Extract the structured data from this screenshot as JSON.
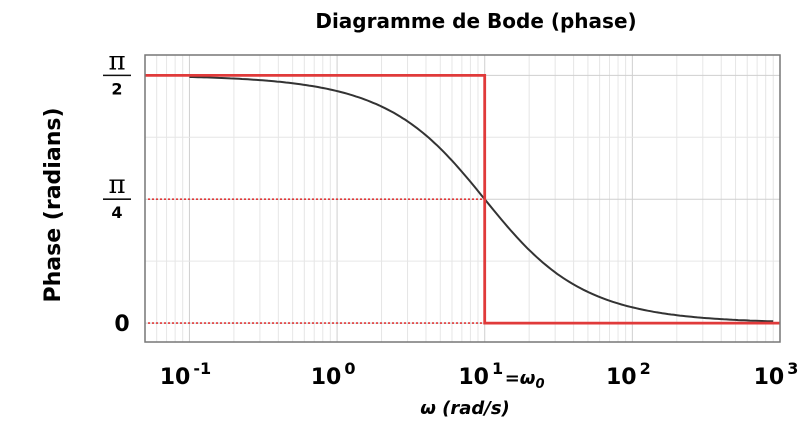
{
  "chart_data": {
    "type": "line",
    "title": "Diagramme de Bode (phase)",
    "ylabel": "Phase (radians)",
    "xlabel": "ω (rad/s)",
    "x_scale": "log",
    "xlim": [
      0.05,
      1000
    ],
    "ylim": [
      -0.12,
      1.7
    ],
    "x_ticks": [
      {
        "value": 0.1,
        "base": "10",
        "exp": "-1"
      },
      {
        "value": 1,
        "base": "10",
        "exp": "0"
      },
      {
        "value": 10,
        "base": "10",
        "exp": "1"
      },
      {
        "value": 100,
        "base": "10",
        "exp": "2"
      },
      {
        "value": 1000,
        "base": "10",
        "exp": "3"
      }
    ],
    "omega0_note": "=ω0",
    "y_ticks": [
      {
        "value": 0,
        "text": "0"
      },
      {
        "value": 0.7854,
        "num": "π",
        "den": "4"
      },
      {
        "value": 1.5708,
        "num": "π",
        "den": "2"
      }
    ],
    "grid": true,
    "series": [
      {
        "kind": "exact",
        "color": "#333333",
        "x": [
          0.1,
          0.2,
          0.5,
          1,
          2,
          3,
          5,
          7,
          10,
          15,
          20,
          30,
          50,
          100,
          200,
          500,
          900
        ],
        "y": [
          1.5608,
          1.5508,
          1.5208,
          1.4711,
          1.3734,
          1.2793,
          1.1071,
          0.9601,
          0.7854,
          0.588,
          0.4636,
          0.3218,
          0.1974,
          0.0997,
          0.05,
          0.02,
          0.0111
        ]
      },
      {
        "kind": "asymptote",
        "color": "#e03a3a",
        "x": [
          0.05,
          10,
          10,
          1000
        ],
        "y": [
          1.5708,
          1.5708,
          0,
          0
        ]
      }
    ],
    "guides": [
      {
        "color": "#e03a3a",
        "from_x": 0.05,
        "to_x": 10,
        "y": 0.7854
      },
      {
        "color": "#e03a3a",
        "from_x": 0.05,
        "to_x": 10,
        "y": 0
      }
    ]
  }
}
